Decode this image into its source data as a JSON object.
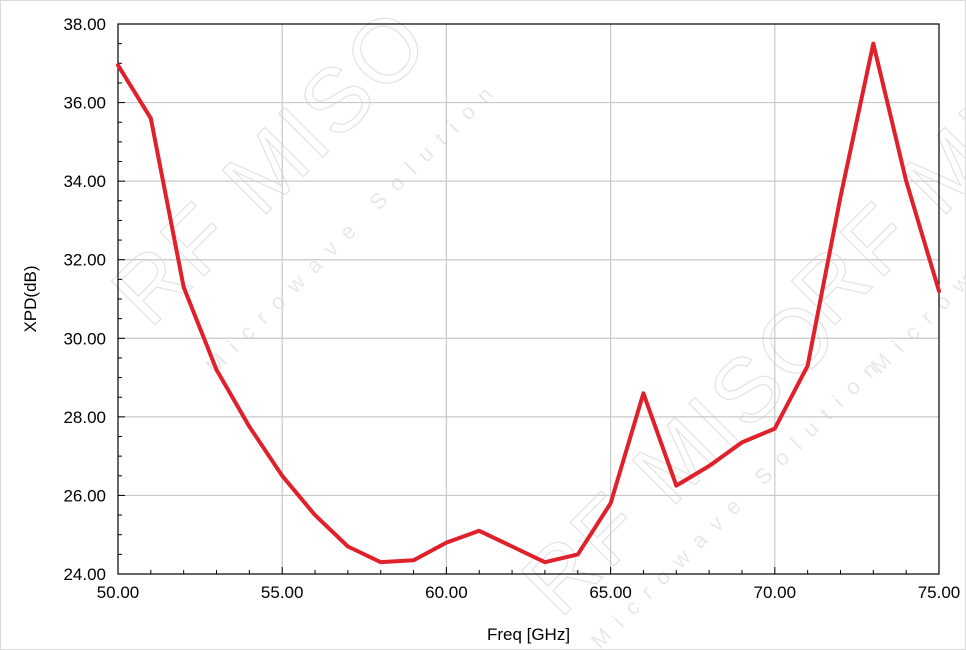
{
  "chart_data": {
    "type": "line",
    "title": "",
    "xlabel": "Freq [GHz]",
    "ylabel": "XPD(dB)",
    "xlim": [
      50,
      75
    ],
    "ylim": [
      24,
      38
    ],
    "x_ticks": [
      "50.00",
      "55.00",
      "60.00",
      "65.00",
      "70.00",
      "75.00"
    ],
    "y_ticks": [
      "24.00",
      "26.00",
      "28.00",
      "30.00",
      "32.00",
      "34.00",
      "36.00",
      "38.00"
    ],
    "grid": true,
    "line_color": "#e0202a",
    "series": [
      {
        "x": [
          50,
          51,
          52,
          53,
          54,
          55,
          56,
          57,
          58,
          59,
          60,
          61,
          62,
          63,
          64,
          65,
          66,
          67,
          68,
          69,
          70,
          71,
          72,
          73,
          74,
          75
        ],
        "y": [
          36.95,
          35.6,
          31.3,
          29.2,
          27.75,
          26.5,
          25.5,
          24.7,
          24.3,
          24.35,
          24.8,
          25.1,
          24.7,
          24.3,
          24.5,
          25.8,
          28.6,
          26.25,
          26.75,
          27.35,
          27.7,
          29.3,
          33.6,
          37.5,
          34.0,
          31.2
        ]
      }
    ]
  },
  "watermark": {
    "brand": "RF MISO",
    "tagline": "Microwave Solution"
  }
}
